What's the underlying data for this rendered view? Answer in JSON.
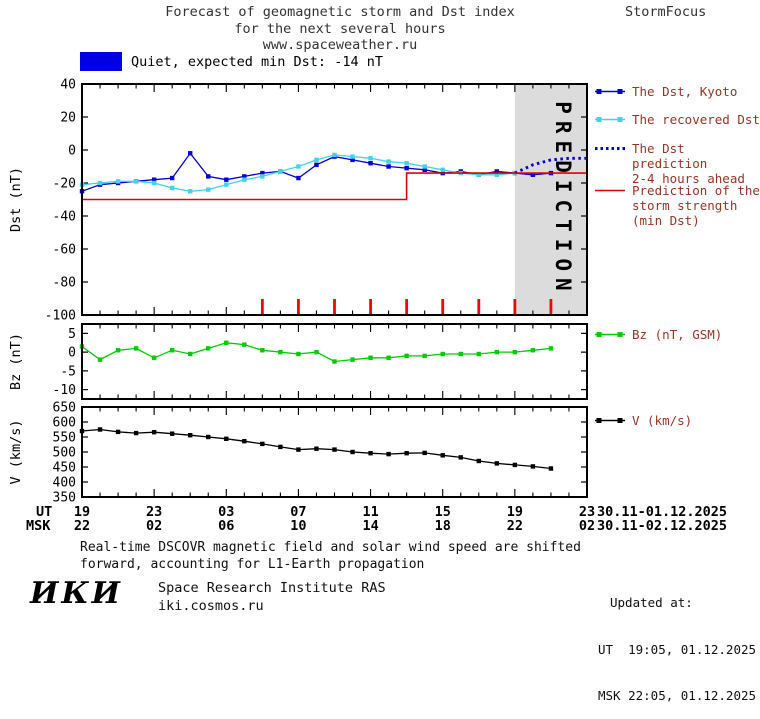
{
  "header": {
    "title_line1": "Forecast of geomagnetic storm and Dst index",
    "title_line2": "for the next several hours",
    "title_line3": "www.spaceweather.ru",
    "brand": "StormFocus"
  },
  "status": {
    "text": "Quiet, expected min Dst: -14 nT"
  },
  "colors": {
    "kyoto": "#0000d0",
    "recovered": "#3cd5ee",
    "prediction": "#0000d0",
    "storm": "#e00000",
    "bz": "#00cc00",
    "v": "#000000",
    "status_box": "#0000e0",
    "band": "#dcdcdc",
    "event_tick": "#ff0000"
  },
  "legend": {
    "kyoto": "The Dst, Kyoto",
    "recovered": "The recovered Dst",
    "prediction_l1": "The Dst prediction",
    "prediction_l2": "2-4 hours ahead",
    "storm_l1": "Prediction of the",
    "storm_l2": "storm strength",
    "storm_l3": "(min Dst)",
    "bz": "Bz (nT, GSM)",
    "v": "V (km/s)"
  },
  "xaxis": {
    "ticks": [
      0,
      4,
      8,
      12,
      16,
      20,
      24,
      28
    ],
    "ut_prefix": "UT",
    "msk_prefix": "MSK",
    "ut_labels": [
      "19",
      "23",
      "03",
      "07",
      "11",
      "15",
      "19",
      "23"
    ],
    "msk_labels": [
      "22",
      "02",
      "06",
      "10",
      "14",
      "18",
      "22",
      "02"
    ],
    "ut_date": "30.11-01.12.2025",
    "msk_date": "30.11-02.12.2025"
  },
  "chart_data": [
    {
      "id": "dst",
      "type": "line",
      "ylabel": "Dst (nT)",
      "xlim": [
        0,
        28
      ],
      "ylim": [
        -100,
        40
      ],
      "yticks": [
        40,
        20,
        0,
        -20,
        -40,
        -60,
        -80,
        -100
      ],
      "x_start_hour_ut": 19,
      "band": {
        "from": 24,
        "to": 28,
        "label": "PREDICTION",
        "color": "#dcdcdc"
      },
      "event_ticks": {
        "color": "#ff0000",
        "x": [
          10,
          12,
          14,
          16,
          18,
          20,
          22,
          24,
          26
        ]
      },
      "series": [
        {
          "key": "dst-kyoto",
          "name": "The Dst, Kyoto",
          "color": "#0000d0",
          "marker": "square",
          "x_start": 0,
          "x_step": 1,
          "values": [
            -25,
            -21,
            -20,
            -19,
            -18,
            -17,
            -2,
            -16,
            -18,
            -16,
            -14,
            -13,
            -17,
            -9,
            -4,
            -6,
            -8,
            -10,
            -11,
            -12,
            -14,
            -13,
            -15,
            -13,
            -14,
            -15,
            -14
          ]
        },
        {
          "key": "dst-recovered",
          "name": "The recovered Dst",
          "color": "#3cd5ee",
          "marker": "square",
          "x_start": 0,
          "x_step": 1,
          "values": [
            -21,
            -20,
            -19,
            -19,
            -20,
            -23,
            -25,
            -24,
            -21,
            -18,
            -16,
            -13,
            -10,
            -6,
            -3,
            -4,
            -5,
            -7,
            -8,
            -10,
            -12,
            -14,
            -15,
            -15,
            -14
          ]
        },
        {
          "key": "dst-prediction",
          "name": "The Dst prediction 2-4 hours ahead",
          "color": "#0000d0",
          "line_style": "dotted",
          "x_start": 24,
          "x_step": 1,
          "values": [
            -14,
            -9,
            -6,
            -5,
            -5
          ]
        },
        {
          "key": "storm-strength",
          "name": "Prediction of the storm strength (min Dst)",
          "color": "#e00000",
          "line_width": 1.6,
          "points": [
            [
              0,
              -30
            ],
            [
              18,
              -30
            ],
            [
              18,
              -14
            ],
            [
              28,
              -14
            ]
          ]
        }
      ]
    },
    {
      "id": "bz",
      "type": "line",
      "ylabel": "Bz (nT)",
      "xlim": [
        0,
        28
      ],
      "ylim": [
        -12.5,
        7.5
      ],
      "yticks": [
        5,
        0,
        -5,
        -10
      ],
      "series": [
        {
          "key": "bz",
          "name": "Bz (nT, GSM)",
          "color": "#00cc00",
          "marker": "square",
          "x_start": 0,
          "x_step": 1,
          "values": [
            1.5,
            -2,
            0.5,
            1,
            -1.5,
            0.5,
            -0.5,
            1,
            2.5,
            2,
            0.5,
            0,
            -0.5,
            0,
            -2.5,
            -2,
            -1.5,
            -1.5,
            -1,
            -1,
            -0.5,
            -0.5,
            -0.5,
            0,
            0,
            0.5,
            1
          ]
        }
      ]
    },
    {
      "id": "v",
      "type": "line",
      "ylabel": "V (km/s)",
      "xlim": [
        0,
        28
      ],
      "ylim": [
        350,
        650
      ],
      "yticks": [
        650,
        600,
        550,
        500,
        450,
        400,
        350
      ],
      "series": [
        {
          "key": "v",
          "name": "V (km/s)",
          "color": "#000000",
          "marker": "square",
          "x_start": 0,
          "x_step": 1,
          "values": [
            570,
            575,
            567,
            563,
            566,
            561,
            556,
            550,
            544,
            536,
            527,
            517,
            508,
            511,
            508,
            500,
            496,
            493,
            496,
            497,
            489,
            482,
            470,
            462,
            457,
            452,
            445
          ]
        }
      ]
    }
  ],
  "footer": {
    "note_l1": "Real-time DSCOVR magnetic field and solar wind speed are shifted",
    "note_l2": "forward, accounting for L1-Earth propagation",
    "updated_label": "Updated at:",
    "updated_ut": "UT  19:05, 01.12.2025",
    "updated_msk": "MSK 22:05, 01.12.2025",
    "logo": "ИКИ",
    "institute": "Space Research Institute RAS",
    "site": "iki.cosmos.ru"
  }
}
